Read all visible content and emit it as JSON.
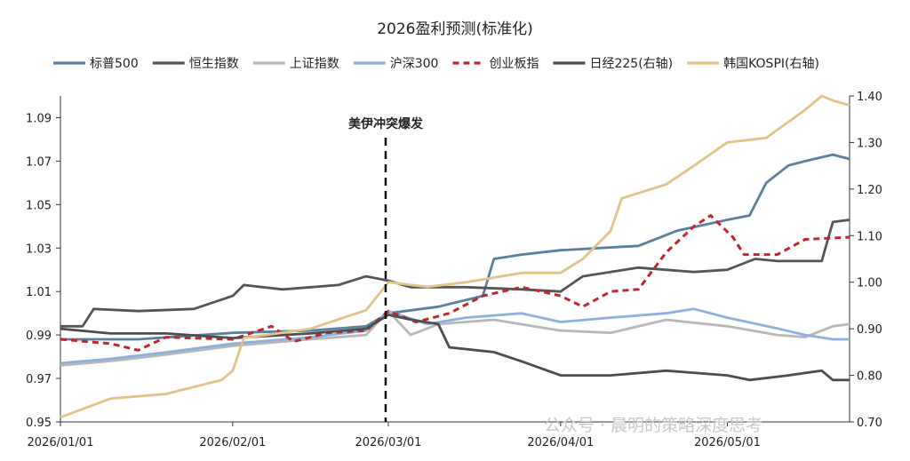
{
  "chart_data": {
    "type": "line",
    "title": "2026盈利预测(标准化)",
    "annotation": "美伊冲突爆发",
    "annotation_date": "2026/03/01",
    "watermark": "公众号 · 晨明的策略深度思考",
    "x_range": [
      "2026/01/01",
      "2026/05/23"
    ],
    "x_ticks": [
      "2026/01/01",
      "2026/02/01",
      "2026/03/01",
      "2026/04/01",
      "2026/05/01"
    ],
    "y_left": {
      "min": 0.95,
      "max": 1.1,
      "ticks": [
        "0.95",
        "0.97",
        "0.99",
        "1.01",
        "1.03",
        "1.05",
        "1.07",
        "1.09"
      ]
    },
    "y_right": {
      "min": 0.7,
      "max": 1.4,
      "ticks": [
        "0.70",
        "0.80",
        "0.90",
        "1.00",
        "1.10",
        "1.20",
        "1.30",
        "1.40"
      ]
    },
    "legend_position": "top",
    "grid": false,
    "series": [
      {
        "name": "标普500",
        "axis": "left",
        "color": "#5b7f9e",
        "dash": "solid",
        "points": [
          [
            "2026/01/01",
            0.988
          ],
          [
            "2026/01/15",
            0.988
          ],
          [
            "2026/02/01",
            0.991
          ],
          [
            "2026/02/15",
            0.992
          ],
          [
            "2026/02/25",
            0.994
          ],
          [
            "2026/03/01",
            1.0
          ],
          [
            "2026/03/10",
            1.003
          ],
          [
            "2026/03/18",
            1.008
          ],
          [
            "2026/03/20",
            1.025
          ],
          [
            "2026/03/25",
            1.027
          ],
          [
            "2026/04/01",
            1.029
          ],
          [
            "2026/04/15",
            1.031
          ],
          [
            "2026/04/22",
            1.038
          ],
          [
            "2026/05/01",
            1.043
          ],
          [
            "2026/05/05",
            1.045
          ],
          [
            "2026/05/08",
            1.06
          ],
          [
            "2026/05/12",
            1.068
          ],
          [
            "2026/05/15",
            1.07
          ],
          [
            "2026/05/20",
            1.073
          ],
          [
            "2026/05/23",
            1.071
          ]
        ]
      },
      {
        "name": "恒生指数",
        "axis": "left",
        "color": "#555555",
        "dash": "solid",
        "points": [
          [
            "2026/01/01",
            0.994
          ],
          [
            "2026/01/05",
            0.994
          ],
          [
            "2026/01/07",
            1.002
          ],
          [
            "2026/01/15",
            1.001
          ],
          [
            "2026/01/25",
            1.002
          ],
          [
            "2026/02/01",
            1.008
          ],
          [
            "2026/02/03",
            1.013
          ],
          [
            "2026/02/10",
            1.011
          ],
          [
            "2026/02/20",
            1.013
          ],
          [
            "2026/02/25",
            1.017
          ],
          [
            "2026/03/01",
            1.015
          ],
          [
            "2026/03/05",
            1.012
          ],
          [
            "2026/03/15",
            1.012
          ],
          [
            "2026/03/25",
            1.011
          ],
          [
            "2026/04/01",
            1.01
          ],
          [
            "2026/04/05",
            1.017
          ],
          [
            "2026/04/15",
            1.021
          ],
          [
            "2026/04/25",
            1.019
          ],
          [
            "2026/05/01",
            1.02
          ],
          [
            "2026/05/06",
            1.025
          ],
          [
            "2026/05/10",
            1.024
          ],
          [
            "2026/05/18",
            1.024
          ],
          [
            "2026/05/20",
            1.042
          ],
          [
            "2026/05/23",
            1.043
          ]
        ]
      },
      {
        "name": "上证指数",
        "axis": "left",
        "color": "#b8b8b8",
        "dash": "solid",
        "points": [
          [
            "2026/01/01",
            0.976
          ],
          [
            "2026/01/10",
            0.978
          ],
          [
            "2026/01/20",
            0.981
          ],
          [
            "2026/02/01",
            0.985
          ],
          [
            "2026/02/15",
            0.988
          ],
          [
            "2026/02/25",
            0.99
          ],
          [
            "2026/03/01",
            1.001
          ],
          [
            "2026/03/05",
            0.99
          ],
          [
            "2026/03/10",
            0.995
          ],
          [
            "2026/03/20",
            0.997
          ],
          [
            "2026/04/01",
            0.992
          ],
          [
            "2026/04/10",
            0.991
          ],
          [
            "2026/04/20",
            0.997
          ],
          [
            "2026/05/01",
            0.994
          ],
          [
            "2026/05/10",
            0.99
          ],
          [
            "2026/05/15",
            0.989
          ],
          [
            "2026/05/20",
            0.994
          ],
          [
            "2026/05/23",
            0.995
          ]
        ]
      },
      {
        "name": "沪深300",
        "axis": "left",
        "color": "#8eb0e0",
        "dash": "solid",
        "points": [
          [
            "2026/01/01",
            0.977
          ],
          [
            "2026/01/10",
            0.979
          ],
          [
            "2026/01/20",
            0.982
          ],
          [
            "2026/02/01",
            0.986
          ],
          [
            "2026/02/15",
            0.989
          ],
          [
            "2026/02/25",
            0.992
          ],
          [
            "2026/03/01",
            1.001
          ],
          [
            "2026/03/08",
            0.995
          ],
          [
            "2026/03/15",
            0.998
          ],
          [
            "2026/03/25",
            1.0
          ],
          [
            "2026/04/01",
            0.996
          ],
          [
            "2026/04/10",
            0.998
          ],
          [
            "2026/04/20",
            1.0
          ],
          [
            "2026/04/25",
            1.002
          ],
          [
            "2026/05/01",
            0.998
          ],
          [
            "2026/05/10",
            0.993
          ],
          [
            "2026/05/15",
            0.99
          ],
          [
            "2026/05/20",
            0.988
          ],
          [
            "2026/05/23",
            0.988
          ]
        ]
      },
      {
        "name": "创业板指",
        "axis": "left",
        "color": "#c0262a",
        "dash": "dashed",
        "points": [
          [
            "2026/01/01",
            0.988
          ],
          [
            "2026/01/10",
            0.986
          ],
          [
            "2026/01/15",
            0.983
          ],
          [
            "2026/01/20",
            0.989
          ],
          [
            "2026/02/01",
            0.988
          ],
          [
            "2026/02/08",
            0.994
          ],
          [
            "2026/02/12",
            0.987
          ],
          [
            "2026/02/18",
            0.991
          ],
          [
            "2026/02/25",
            0.992
          ],
          [
            "2026/03/01",
            1.001
          ],
          [
            "2026/03/06",
            0.996
          ],
          [
            "2026/03/12",
            1.0
          ],
          [
            "2026/03/18",
            1.008
          ],
          [
            "2026/03/25",
            1.012
          ],
          [
            "2026/04/01",
            1.008
          ],
          [
            "2026/04/05",
            1.003
          ],
          [
            "2026/04/10",
            1.01
          ],
          [
            "2026/04/15",
            1.011
          ],
          [
            "2026/04/20",
            1.028
          ],
          [
            "2026/04/25",
            1.04
          ],
          [
            "2026/04/28",
            1.045
          ],
          [
            "2026/05/02",
            1.035
          ],
          [
            "2026/05/04",
            1.027
          ],
          [
            "2026/05/10",
            1.027
          ],
          [
            "2026/05/15",
            1.034
          ],
          [
            "2026/05/23",
            1.035
          ]
        ]
      },
      {
        "name": "日经225(右轴)",
        "axis": "right",
        "color": "#4d4d4d",
        "dash": "solid",
        "points": [
          [
            "2026/01/01",
            0.9
          ],
          [
            "2026/01/10",
            0.89
          ],
          [
            "2026/01/20",
            0.89
          ],
          [
            "2026/02/01",
            0.88
          ],
          [
            "2026/02/15",
            0.89
          ],
          [
            "2026/02/25",
            0.9
          ],
          [
            "2026/03/01",
            0.93
          ],
          [
            "2026/03/05",
            0.92
          ],
          [
            "2026/03/10",
            0.91
          ],
          [
            "2026/03/12",
            0.86
          ],
          [
            "2026/03/20",
            0.85
          ],
          [
            "2026/03/25",
            0.83
          ],
          [
            "2026/04/01",
            0.8
          ],
          [
            "2026/04/10",
            0.8
          ],
          [
            "2026/04/20",
            0.81
          ],
          [
            "2026/05/01",
            0.8
          ],
          [
            "2026/05/05",
            0.79
          ],
          [
            "2026/05/12",
            0.8
          ],
          [
            "2026/05/18",
            0.81
          ],
          [
            "2026/05/20",
            0.79
          ],
          [
            "2026/05/23",
            0.79
          ]
        ]
      },
      {
        "name": "韩国KOSPI(右轴)",
        "axis": "right",
        "color": "#e2c48a",
        "dash": "solid",
        "points": [
          [
            "2026/01/01",
            0.71
          ],
          [
            "2026/01/10",
            0.75
          ],
          [
            "2026/01/20",
            0.76
          ],
          [
            "2026/01/30",
            0.79
          ],
          [
            "2026/02/01",
            0.81
          ],
          [
            "2026/02/03",
            0.88
          ],
          [
            "2026/02/15",
            0.9
          ],
          [
            "2026/02/25",
            0.94
          ],
          [
            "2026/03/01",
            1.0
          ],
          [
            "2026/03/08",
            0.99
          ],
          [
            "2026/03/15",
            1.0
          ],
          [
            "2026/03/25",
            1.02
          ],
          [
            "2026/04/01",
            1.02
          ],
          [
            "2026/04/05",
            1.05
          ],
          [
            "2026/04/10",
            1.11
          ],
          [
            "2026/04/12",
            1.18
          ],
          [
            "2026/04/20",
            1.21
          ],
          [
            "2026/04/25",
            1.25
          ],
          [
            "2026/05/01",
            1.3
          ],
          [
            "2026/05/08",
            1.31
          ],
          [
            "2026/05/15",
            1.37
          ],
          [
            "2026/05/18",
            1.4
          ],
          [
            "2026/05/20",
            1.39
          ],
          [
            "2026/05/23",
            1.38
          ]
        ]
      }
    ]
  }
}
